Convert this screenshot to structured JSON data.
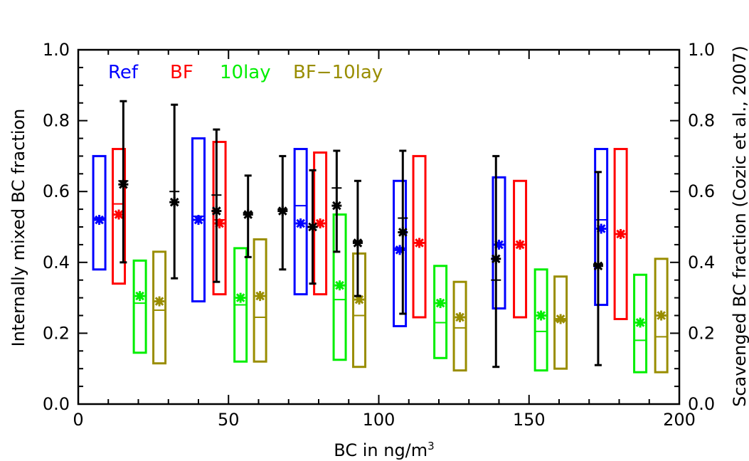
{
  "chart_data": {
    "type": "box",
    "title": "",
    "xlabel": "BC in ng/m",
    "xlabel_sup": "3",
    "ylabel": "Internally mixed BC fraction",
    "ylabel_right": "Scavenged BC fraction (Cozic et al., 2007)",
    "xlim": [
      0,
      200
    ],
    "ylim": [
      0,
      1
    ],
    "xticks": [
      "0",
      "50",
      "100",
      "150",
      "200"
    ],
    "yticks": [
      "0.0",
      "0.2",
      "0.4",
      "0.6",
      "0.8",
      "1.0"
    ],
    "yticks_right": [
      "0.0",
      "0.2",
      "0.4",
      "0.6",
      "0.8",
      "1.0"
    ],
    "legend_position": "top-left",
    "series": [
      {
        "name": "Ref",
        "color": "#0000ff",
        "boxes": [
          {
            "x": 7,
            "low": 0.38,
            "high": 0.7,
            "median": 0.525,
            "mean": 0.52
          },
          {
            "x": 40,
            "low": 0.29,
            "high": 0.75,
            "median": 0.53,
            "mean": 0.52
          },
          {
            "x": 74,
            "low": 0.31,
            "high": 0.72,
            "median": 0.56,
            "mean": 0.51
          },
          {
            "x": 107,
            "low": 0.22,
            "high": 0.63,
            "median": 0.44,
            "mean": 0.435
          },
          {
            "x": 140,
            "low": 0.27,
            "high": 0.64,
            "median": 0.45,
            "mean": 0.45
          },
          {
            "x": 174,
            "low": 0.28,
            "high": 0.72,
            "median": 0.52,
            "mean": 0.495
          }
        ]
      },
      {
        "name": "BF",
        "color": "#ff0000",
        "boxes": [
          {
            "x": 13.5,
            "low": 0.34,
            "high": 0.72,
            "median": 0.565,
            "mean": 0.535
          },
          {
            "x": 47,
            "low": 0.31,
            "high": 0.74,
            "median": 0.52,
            "mean": 0.51
          },
          {
            "x": 80.5,
            "low": 0.31,
            "high": 0.71,
            "median": 0.51,
            "mean": 0.51
          },
          {
            "x": 113.5,
            "low": 0.245,
            "high": 0.7,
            "median": 0.455,
            "mean": 0.455
          },
          {
            "x": 147,
            "low": 0.245,
            "high": 0.63,
            "median": 0.45,
            "mean": 0.45
          },
          {
            "x": 180.5,
            "low": 0.24,
            "high": 0.72,
            "median": 0.48,
            "mean": 0.48
          }
        ]
      },
      {
        "name": "10lay",
        "color": "#00ee00",
        "boxes": [
          {
            "x": 20.5,
            "low": 0.145,
            "high": 0.405,
            "median": 0.285,
            "mean": 0.305
          },
          {
            "x": 54,
            "low": 0.12,
            "high": 0.44,
            "median": 0.28,
            "mean": 0.3
          },
          {
            "x": 87,
            "low": 0.125,
            "high": 0.535,
            "median": 0.295,
            "mean": 0.335
          },
          {
            "x": 120.5,
            "low": 0.13,
            "high": 0.39,
            "median": 0.23,
            "mean": 0.285
          },
          {
            "x": 154,
            "low": 0.095,
            "high": 0.38,
            "median": 0.205,
            "mean": 0.25
          },
          {
            "x": 187,
            "low": 0.09,
            "high": 0.365,
            "median": 0.18,
            "mean": 0.23
          }
        ]
      },
      {
        "name": "BF−10lay",
        "color": "#998d00",
        "boxes": [
          {
            "x": 27,
            "low": 0.115,
            "high": 0.43,
            "median": 0.265,
            "mean": 0.29
          },
          {
            "x": 60.5,
            "low": 0.12,
            "high": 0.465,
            "median": 0.245,
            "mean": 0.305
          },
          {
            "x": 93.5,
            "low": 0.105,
            "high": 0.425,
            "median": 0.25,
            "mean": 0.295
          },
          {
            "x": 127,
            "low": 0.095,
            "high": 0.345,
            "median": 0.215,
            "mean": 0.245
          },
          {
            "x": 160.5,
            "low": 0.1,
            "high": 0.36,
            "median": 0.235,
            "mean": 0.24
          },
          {
            "x": 194,
            "low": 0.09,
            "high": 0.41,
            "median": 0.19,
            "mean": 0.25
          }
        ]
      }
    ],
    "observations": {
      "color": "#000000",
      "points": [
        {
          "x": 15,
          "low": 0.4,
          "high": 0.855,
          "median": 0.63,
          "mean": 0.62
        },
        {
          "x": 32,
          "low": 0.355,
          "high": 0.845,
          "median": 0.6,
          "mean": 0.57
        },
        {
          "x": 46,
          "low": 0.345,
          "high": 0.775,
          "median": 0.59,
          "mean": 0.545
        },
        {
          "x": 56.5,
          "low": 0.415,
          "high": 0.645,
          "median": 0.54,
          "mean": 0.535
        },
        {
          "x": 68,
          "low": 0.38,
          "high": 0.7,
          "median": 0.55,
          "mean": 0.545
        },
        {
          "x": 78,
          "low": 0.34,
          "high": 0.66,
          "median": 0.5,
          "mean": 0.5
        },
        {
          "x": 86,
          "low": 0.43,
          "high": 0.715,
          "median": 0.61,
          "mean": 0.56
        },
        {
          "x": 93,
          "low": 0.305,
          "high": 0.63,
          "median": 0.46,
          "mean": 0.455
        },
        {
          "x": 108,
          "low": 0.255,
          "high": 0.715,
          "median": 0.525,
          "mean": 0.485
        },
        {
          "x": 139,
          "low": 0.105,
          "high": 0.7,
          "median": 0.35,
          "mean": 0.41
        },
        {
          "x": 173,
          "low": 0.11,
          "high": 0.655,
          "median": 0.395,
          "mean": 0.39
        }
      ]
    }
  }
}
